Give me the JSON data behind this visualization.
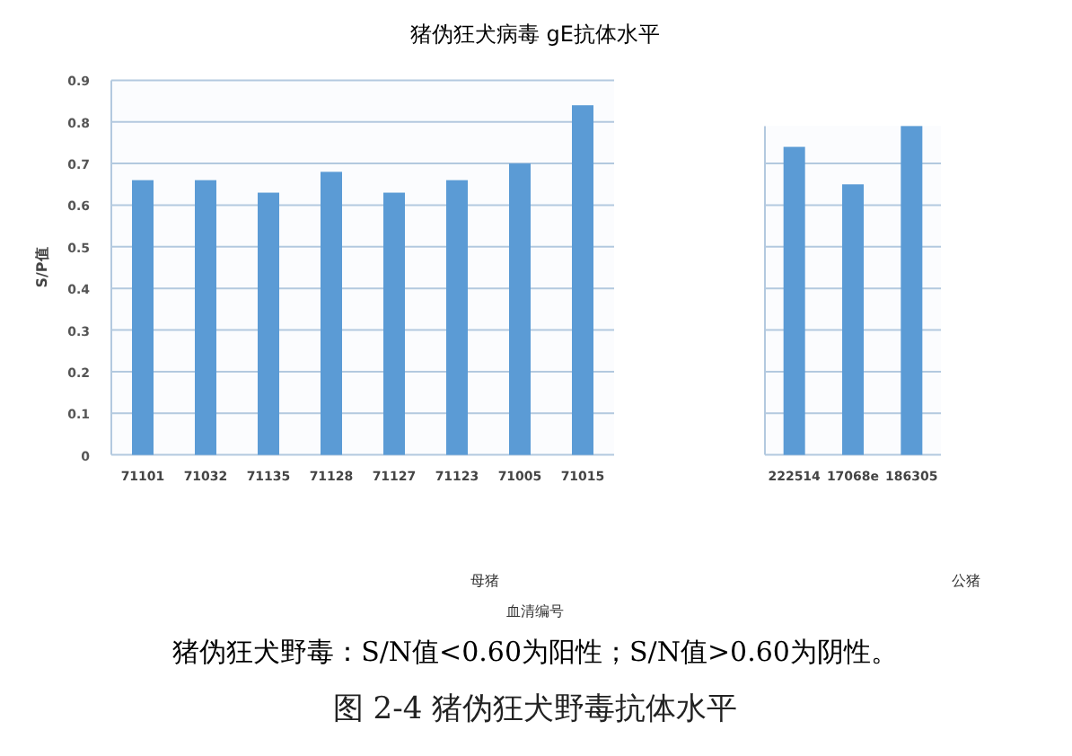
{
  "chart_data": [
    {
      "type": "bar",
      "title": "猪伪狂犬病毒 gE抗体水平",
      "ylabel": "S/P值",
      "xlabel": "母猪",
      "categories": [
        "71101",
        "71032",
        "71135",
        "71128",
        "71127",
        "71123",
        "71005",
        "71015"
      ],
      "values": [
        0.66,
        0.66,
        0.63,
        0.68,
        0.63,
        0.66,
        0.7,
        0.84
      ],
      "color": "#5b9bd5",
      "ylim": [
        0,
        0.9
      ],
      "yticks": [
        0,
        0.1,
        0.2,
        0.3,
        0.4,
        0.5,
        0.6,
        0.7,
        0.8,
        0.9
      ],
      "grid": "y",
      "annotations": [
        "血清编号",
        "猪伪狂犬野毒：S/N值<0.60为阳性；S/N值>0.60为阴性。",
        "图 2-4  猪伪狂犬野毒抗体水平"
      ]
    },
    {
      "type": "bar",
      "xlabel": "公猪",
      "categories": [
        "222514",
        "17068e",
        "186305"
      ],
      "values": [
        0.74,
        0.65,
        0.79
      ],
      "color": "#5b9bd5",
      "ylim": [
        0,
        0.79
      ],
      "yticks": [
        0,
        0.1,
        0.2,
        0.3,
        0.4,
        0.5,
        0.6,
        0.7
      ],
      "grid": "y",
      "tick_labels": "x"
    }
  ]
}
